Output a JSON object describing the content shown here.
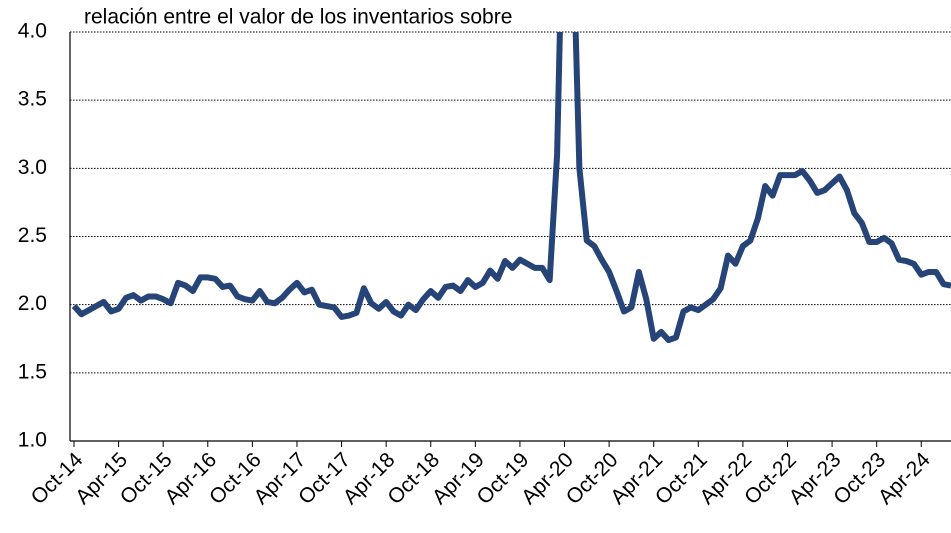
{
  "chart_data": {
    "type": "line",
    "title": "relación entre el valor de los inventarios sobre",
    "categories": [
      "Oct-14",
      null,
      null,
      null,
      null,
      null,
      "Apr-15",
      null,
      null,
      null,
      null,
      null,
      "Oct-15",
      null,
      null,
      null,
      null,
      null,
      "Apr-16",
      null,
      null,
      null,
      null,
      null,
      "Oct-16",
      null,
      null,
      null,
      null,
      null,
      "Apr-17",
      null,
      null,
      null,
      null,
      null,
      "Oct-17",
      null,
      null,
      null,
      null,
      null,
      "Apr-18",
      null,
      null,
      null,
      null,
      null,
      "Oct-18",
      null,
      null,
      null,
      null,
      null,
      "Apr-19",
      null,
      null,
      null,
      null,
      null,
      "Oct-19",
      null,
      null,
      null,
      null,
      null,
      "Apr-20",
      null,
      null,
      null,
      null,
      null,
      "Oct-20",
      null,
      null,
      null,
      null,
      null,
      "Apr-21",
      null,
      null,
      null,
      null,
      null,
      "Oct-21",
      null,
      null,
      null,
      null,
      null,
      "Apr-22",
      null,
      null,
      null,
      null,
      null,
      "Oct-22",
      null,
      null,
      null,
      null,
      null,
      "Apr-23",
      null,
      null,
      null,
      null,
      null,
      "Oct-23",
      null,
      null,
      null,
      null,
      null,
      "Apr-24",
      null,
      null,
      null,
      null
    ],
    "series": [
      {
        "name": "inventarios",
        "color": "#264478",
        "values": [
          1.99,
          1.93,
          1.96,
          1.99,
          2.02,
          1.95,
          1.97,
          2.05,
          2.07,
          2.03,
          2.06,
          2.06,
          2.04,
          2.01,
          2.16,
          2.14,
          2.1,
          2.2,
          2.2,
          2.19,
          2.13,
          2.14,
          2.06,
          2.04,
          2.03,
          2.1,
          2.02,
          2.01,
          2.05,
          2.11,
          2.16,
          2.09,
          2.11,
          2.0,
          1.99,
          1.98,
          1.91,
          1.92,
          1.94,
          2.12,
          2.01,
          1.97,
          2.02,
          1.95,
          1.92,
          2.0,
          1.96,
          2.04,
          2.1,
          2.05,
          2.13,
          2.14,
          2.1,
          2.18,
          2.13,
          2.16,
          2.25,
          2.19,
          2.32,
          2.27,
          2.33,
          2.3,
          2.27,
          2.27,
          2.18,
          3.1,
          5.5,
          5.0,
          3.0,
          2.47,
          2.43,
          2.33,
          2.24,
          2.1,
          1.95,
          1.98,
          2.24,
          2.04,
          1.75,
          1.8,
          1.74,
          1.76,
          1.95,
          1.98,
          1.96,
          2.0,
          2.04,
          2.12,
          2.36,
          2.3,
          2.43,
          2.47,
          2.63,
          2.87,
          2.8,
          2.95,
          2.95,
          2.95,
          2.98,
          2.91,
          2.82,
          2.84,
          2.89,
          2.94,
          2.84,
          2.67,
          2.6,
          2.46,
          2.46,
          2.49,
          2.45,
          2.33,
          2.32,
          2.3,
          2.22,
          2.24,
          2.24,
          2.15,
          2.14
        ]
      }
    ],
    "ylim": [
      1.0,
      4.0
    ],
    "yticks": [
      {
        "value": 1.0,
        "label": "1.0"
      },
      1.5,
      {
        "value": 2.0,
        "label": "2.0"
      },
      2.5,
      {
        "value": 3.0,
        "label": "3.0"
      },
      3.5,
      {
        "value": 4.0,
        "label": "4.0"
      }
    ],
    "grid": true
  }
}
